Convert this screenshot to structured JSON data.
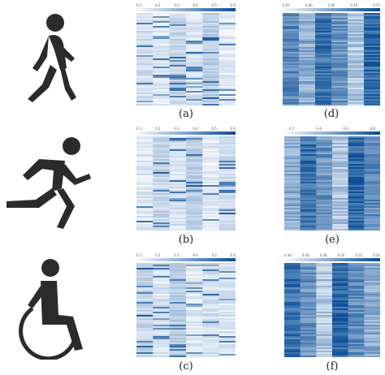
{
  "figure": {
    "captions": [
      "(a)",
      "(b)",
      "(c)",
      "(d)",
      "(e)",
      "(f)"
    ],
    "activities": [
      "walking-icon",
      "running-icon",
      "wheelchair-icon"
    ],
    "colors": {
      "icon": "#2b2b2b",
      "heat_low": "#f4f8fd",
      "heat_high": "#0b4f97"
    }
  },
  "chart_data": [
    {
      "id": "a",
      "type": "heatmap",
      "colorbar_ticks": [
        "0.1",
        "0.2",
        "0.3",
        "0.4",
        "0.5",
        "0.6"
      ]
    },
    {
      "id": "b",
      "type": "heatmap",
      "colorbar_ticks": [
        "0.1",
        "0.2",
        "0.3",
        "0.4",
        "0.5",
        "0.6"
      ]
    },
    {
      "id": "c",
      "type": "heatmap",
      "colorbar_ticks": [
        "0.1",
        "0.2",
        "0.3",
        "0.4",
        "0.5",
        "0.6"
      ]
    },
    {
      "id": "d",
      "type": "heatmap",
      "colorbar_ticks": [
        "0.55",
        "0.60",
        "0.65",
        "0.70",
        "0.75"
      ]
    },
    {
      "id": "e",
      "type": "heatmap",
      "colorbar_ticks": [
        "0.2",
        "0.4",
        "0.6",
        "0.8"
      ]
    },
    {
      "id": "f",
      "type": "heatmap",
      "colorbar_ticks": [
        "0.44",
        "0.46",
        "0.48",
        "0.50",
        "0.52",
        "0.54"
      ]
    }
  ]
}
